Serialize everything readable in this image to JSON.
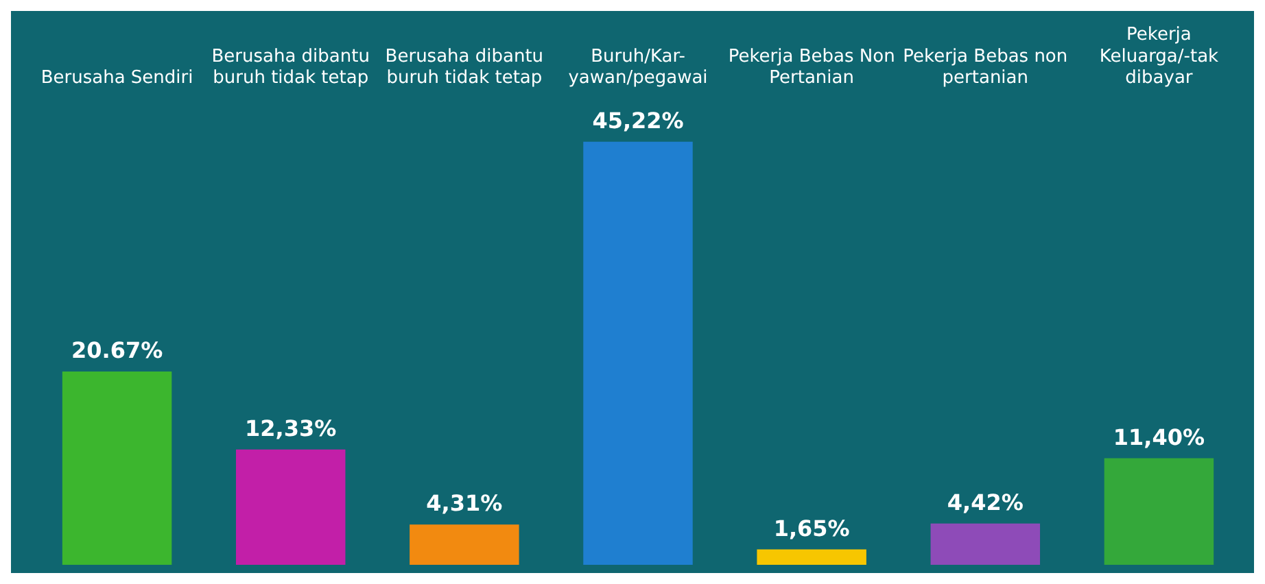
{
  "chart_data": {
    "type": "bar",
    "categories": [
      "Berusaha Sendiri",
      "Berusaha dibantu buruh tidak tetap",
      "Berusaha dibantu buruh tidak tetap",
      "Buruh/Kar-yawan/pegawai",
      "Pekerja Bebas Non Pertanian",
      "Pekerja Bebas non pertanian",
      "Pekerja Keluarga/-tak dibayar"
    ],
    "values": [
      20.67,
      12.33,
      4.31,
      45.22,
      1.65,
      4.42,
      11.4
    ],
    "colors": [
      "#3cb62e",
      "#c21fa8",
      "#f28a10",
      "#1f7fd0",
      "#f7c600",
      "#8e4bb8",
      "#34a83a"
    ],
    "value_labels": [
      "20.67%",
      "12,33%",
      "4,31%",
      "45,22%",
      "1,65%",
      "4,42%",
      "11,40%"
    ],
    "grid": false,
    "legend": false
  }
}
